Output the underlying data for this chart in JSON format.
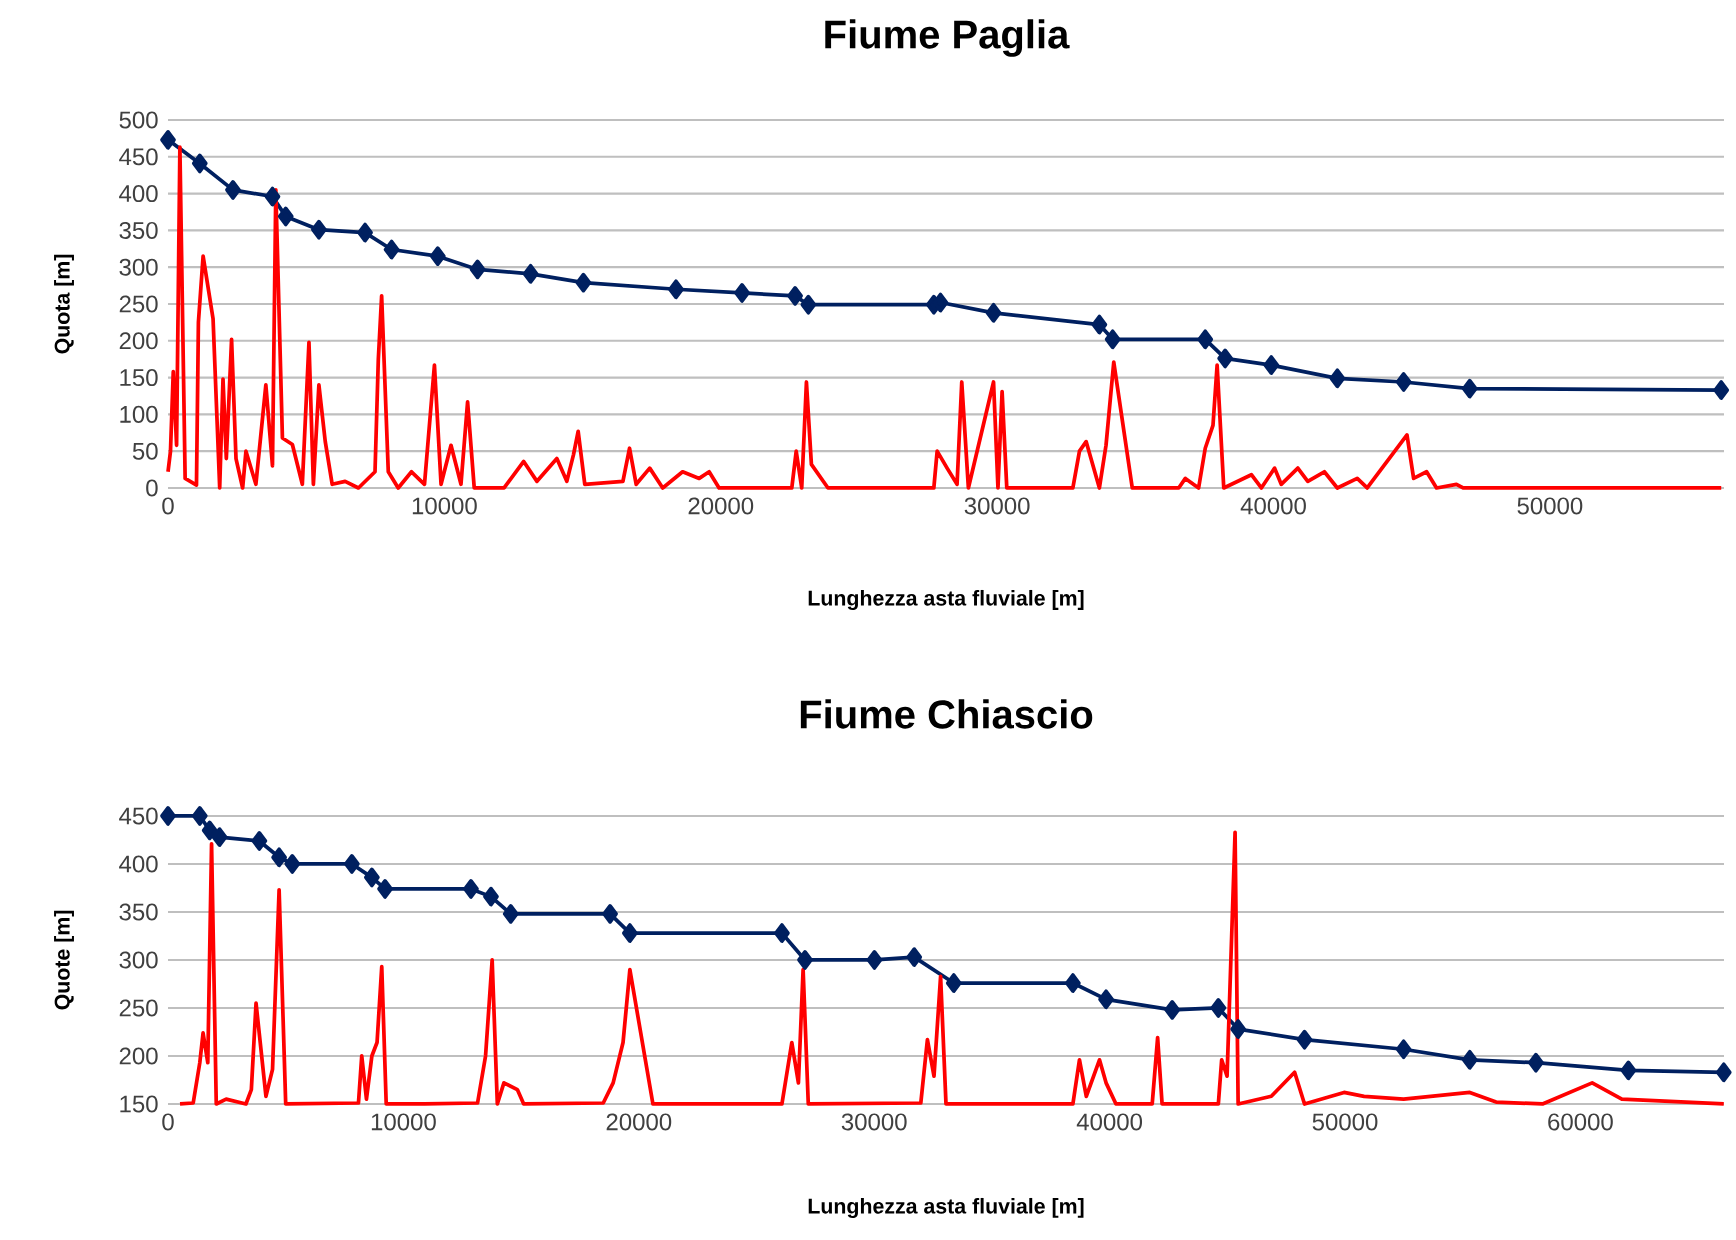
{
  "chart_data": [
    {
      "type": "line",
      "title": "Fiume Paglia",
      "xlabel": "Lunghezza asta fluviale [m]",
      "ylabel": "Quota [m]",
      "grid": "y",
      "xlim": [
        0,
        56300
      ],
      "xticks": [
        0,
        10000,
        20000,
        30000,
        40000,
        50000
      ],
      "ylim": [
        0,
        500
      ],
      "yticks": [
        0,
        50,
        100,
        150,
        200,
        250,
        300,
        350,
        400,
        450,
        500
      ],
      "series": [
        {
          "color": "#002060",
          "marker": "diamond",
          "x": [
            0,
            1150,
            2350,
            3780,
            4260,
            5460,
            7130,
            8090,
            9760,
            11200,
            13120,
            15030,
            18380,
            20770,
            22690,
            23170,
            27710,
            27950,
            29870,
            33700,
            34180,
            37530,
            38250,
            39920,
            42310,
            44710,
            47100,
            56200
          ],
          "values": [
            473,
            441,
            405,
            396,
            369,
            351,
            347,
            324,
            315,
            297,
            291,
            279,
            270,
            265,
            261,
            249,
            249,
            252,
            238,
            222,
            202,
            202,
            176,
            167,
            149,
            144,
            135,
            133
          ]
        },
        {
          "color": "#ff0000",
          "marker": "none",
          "x": [
            0,
            90,
            190,
            310,
            430,
            620,
            1030,
            1100,
            1270,
            1630,
            1870,
            1990,
            2110,
            2300,
            2460,
            2700,
            2820,
            3180,
            3540,
            3780,
            3900,
            4140,
            4500,
            4860,
            5100,
            5260,
            5460,
            5690,
            5940,
            6410,
            6890,
            7490,
            7610,
            7730,
            7970,
            8330,
            8810,
            9280,
            9640,
            9880,
            10240,
            10600,
            10840,
            11080,
            12160,
            12870,
            13350,
            14070,
            14430,
            14670,
            14840,
            15080,
            16460,
            16700,
            16940,
            17430,
            17900,
            18620,
            19220,
            19580,
            19940,
            22570,
            22730,
            22930,
            23100,
            23280,
            23880,
            27710,
            27830,
            28190,
            28550,
            28720,
            28960,
            29870,
            30030,
            30180,
            30350,
            32740,
            32980,
            33220,
            33700,
            33940,
            34220,
            34890,
            36570,
            36810,
            37290,
            37530,
            37810,
            37960,
            38200,
            39200,
            39560,
            40040,
            40280,
            40880,
            41240,
            41840,
            42310,
            43030,
            43390,
            44830,
            45070,
            45540,
            45900,
            46620,
            46860,
            56200
          ],
          "values": [
            22,
            50,
            158,
            58,
            463,
            13,
            4,
            225,
            315,
            230,
            0,
            148,
            40,
            202,
            40,
            0,
            50,
            5,
            140,
            30,
            405,
            68,
            59,
            5,
            198,
            5,
            140,
            63,
            5,
            9,
            0,
            22,
            175,
            261,
            22,
            0,
            22,
            5,
            167,
            5,
            58,
            5,
            117,
            0,
            0,
            36,
            9,
            40,
            9,
            45,
            77,
            5,
            9,
            54,
            5,
            27,
            0,
            22,
            13,
            22,
            0,
            0,
            50,
            0,
            144,
            32,
            0,
            0,
            50,
            27,
            5,
            144,
            0,
            144,
            0,
            131,
            0,
            0,
            50,
            63,
            0,
            58,
            171,
            0,
            0,
            13,
            0,
            54,
            85,
            167,
            0,
            18,
            0,
            27,
            5,
            27,
            9,
            22,
            0,
            13,
            0,
            72,
            13,
            22,
            0,
            5,
            0,
            0
          ]
        }
      ]
    },
    {
      "type": "line",
      "title": "Fiume Chiascio",
      "xlabel": "Lunghezza asta fluviale [m]",
      "ylabel": "Quote [m]",
      "grid": "y",
      "xlim": [
        0,
        66100
      ],
      "xticks": [
        0,
        10000,
        20000,
        30000,
        40000,
        50000,
        60000
      ],
      "ylim": [
        150,
        450
      ],
      "yticks": [
        150,
        200,
        250,
        300,
        350,
        400,
        450
      ],
      "series": [
        {
          "color": "#002060",
          "marker": "diamond",
          "x": [
            0,
            1350,
            1770,
            2190,
            3880,
            4720,
            5280,
            7810,
            8660,
            9220,
            12870,
            13720,
            14560,
            18780,
            19620,
            26080,
            27060,
            30010,
            31700,
            33380,
            38440,
            39850,
            42660,
            44620,
            45460,
            48280,
            52490,
            55300,
            58110,
            62040,
            66090
          ],
          "values": [
            450,
            450,
            435,
            428,
            424,
            407,
            400,
            400,
            386,
            374,
            374,
            366,
            348,
            348,
            328,
            328,
            300,
            300,
            303,
            276,
            276,
            259,
            248,
            250,
            228,
            217,
            207,
            196,
            193,
            185,
            183
          ]
        },
        {
          "color": "#ff0000",
          "marker": "none",
          "x": [
            510,
            1070,
            1350,
            1490,
            1690,
            1850,
            2050,
            2470,
            3310,
            3540,
            3740,
            4160,
            4440,
            4720,
            5000,
            8090,
            8230,
            8430,
            8660,
            8880,
            9080,
            9270,
            10900,
            13150,
            13490,
            13770,
            13990,
            14270,
            14840,
            15110,
            18490,
            18910,
            19330,
            19620,
            20600,
            26080,
            26500,
            26780,
            26980,
            27200,
            31980,
            32260,
            32540,
            32820,
            33050,
            38440,
            38720,
            39010,
            39570,
            39850,
            40270,
            41810,
            42040,
            42230,
            44620,
            44760,
            44990,
            45330,
            45460,
            46870,
            47860,
            48280,
            49960,
            50810,
            52490,
            55300,
            56420,
            58390,
            60500,
            61760,
            66090
          ],
          "values": [
            150,
            151,
            193,
            224,
            193,
            421,
            150,
            155,
            150,
            165,
            255,
            158,
            186,
            373,
            150,
            151,
            200,
            155,
            200,
            214,
            293,
            150,
            150,
            151,
            200,
            300,
            150,
            172,
            165,
            150,
            151,
            172,
            214,
            290,
            150,
            150,
            214,
            172,
            290,
            150,
            151,
            217,
            179,
            283,
            150,
            150,
            196,
            158,
            196,
            172,
            150,
            150,
            219,
            150,
            150,
            196,
            179,
            433,
            150,
            158,
            183,
            150,
            162,
            158,
            155,
            162,
            152,
            150,
            172,
            155,
            150
          ]
        }
      ]
    }
  ]
}
